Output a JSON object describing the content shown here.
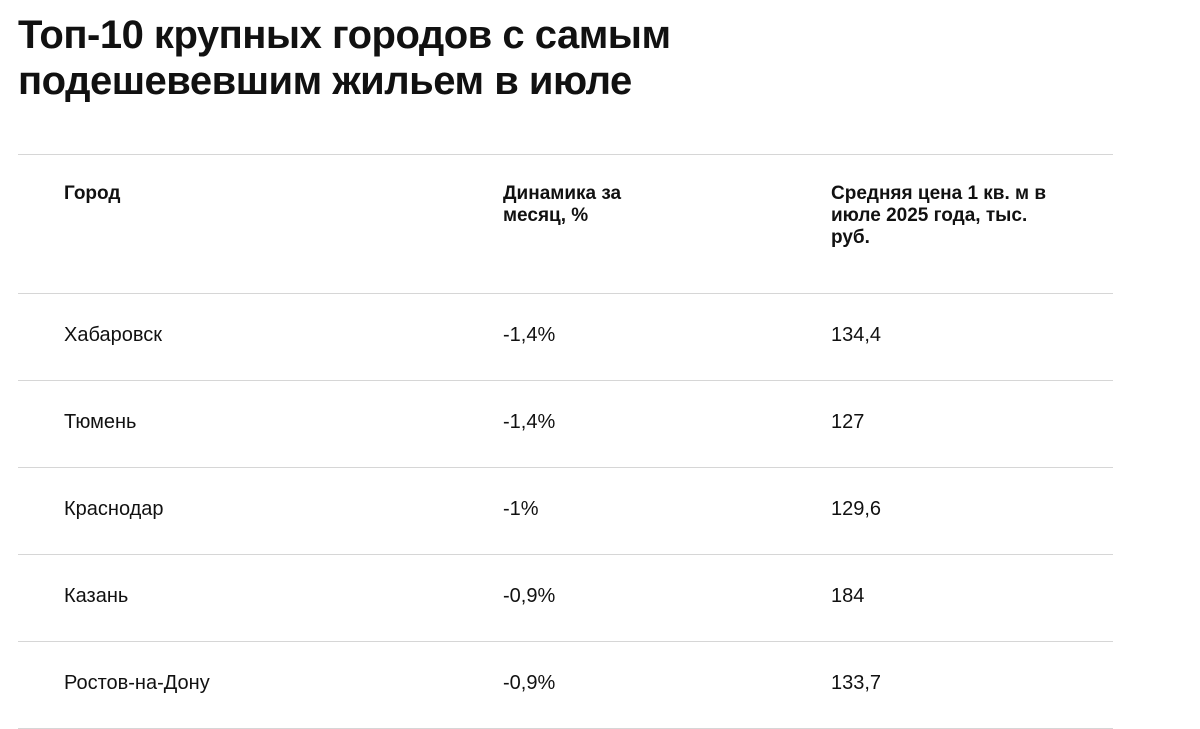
{
  "header": {
    "title": "Топ-10 крупных городов с самым подешевевшим жильем в июле"
  },
  "table": {
    "columns": [
      "Город",
      "Динамика за месяц, %",
      "Средняя цена 1 кв. м в июле 2025 года, тыс. руб."
    ],
    "rows": [
      [
        "Хабаровск",
        "-1,4%",
        "134,4"
      ],
      [
        "Тюмень",
        "-1,4%",
        "127"
      ],
      [
        "Краснодар",
        "-1%",
        "129,6"
      ],
      [
        "Казань",
        "-0,9%",
        "184"
      ],
      [
        "Ростов-на-Дону",
        "-0,9%",
        "133,7"
      ]
    ]
  }
}
